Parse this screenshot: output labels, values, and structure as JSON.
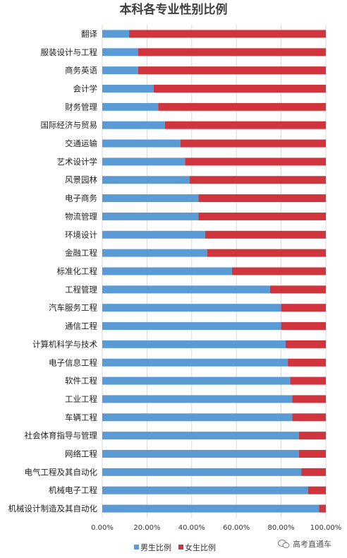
{
  "chart_data": {
    "type": "bar",
    "orientation": "horizontal",
    "stacked": true,
    "title": "本科各专业性别比例",
    "categories": [
      "翻译",
      "服装设计与工程",
      "商务英语",
      "会计学",
      "财务管理",
      "国际经济与贸易",
      "交通运输",
      "艺术设计学",
      "风景园林",
      "电子商务",
      "物流管理",
      "环境设计",
      "金融工程",
      "标准化工程",
      "工程管理",
      "汽车服务工程",
      "通信工程",
      "计算机科学与技术",
      "电子信息工程",
      "软件工程",
      "工业工程",
      "车辆工程",
      "社会体育指导与管理",
      "网络工程",
      "电气工程及其自动化",
      "机械电子工程",
      "机械设计制造及其自动化"
    ],
    "series": [
      {
        "name": "男生比例",
        "color": "#5b9bd5",
        "values": [
          0.12,
          0.16,
          0.16,
          0.23,
          0.25,
          0.28,
          0.35,
          0.37,
          0.39,
          0.43,
          0.43,
          0.46,
          0.47,
          0.58,
          0.75,
          0.8,
          0.8,
          0.82,
          0.83,
          0.84,
          0.85,
          0.85,
          0.88,
          0.88,
          0.89,
          0.92,
          0.97
        ]
      },
      {
        "name": "女生比例",
        "color": "#d0343c",
        "values": [
          0.88,
          0.84,
          0.84,
          0.77,
          0.75,
          0.72,
          0.65,
          0.63,
          0.61,
          0.57,
          0.57,
          0.54,
          0.53,
          0.42,
          0.25,
          0.2,
          0.2,
          0.18,
          0.17,
          0.16,
          0.15,
          0.15,
          0.12,
          0.12,
          0.11,
          0.08,
          0.03
        ]
      }
    ],
    "x_ticks": [
      "0.00%",
      "20.00%",
      "40.00%",
      "60.00%",
      "80.00%",
      "100.00%"
    ],
    "xlim": [
      0,
      1
    ],
    "grid": true,
    "legend_position": "bottom"
  },
  "watermark": {
    "text": "高考直通车",
    "icon": "wechat-icon"
  }
}
